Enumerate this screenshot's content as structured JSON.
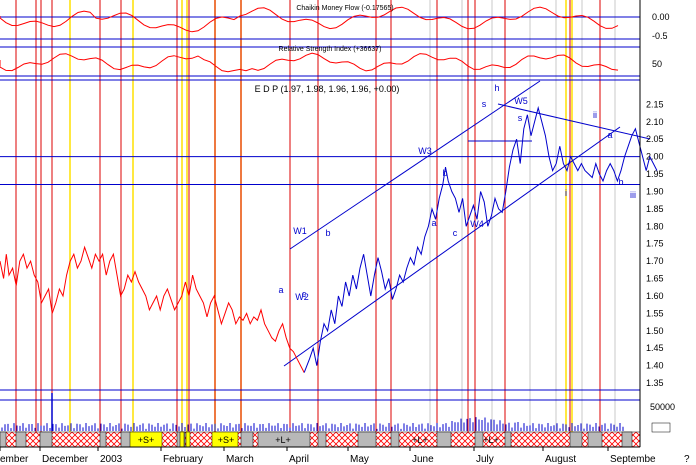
{
  "chart_data": {
    "type": "line",
    "title": "E D P (1.97, 1.98, 1.96, 1.96, +0.00)",
    "panels": {
      "cmf": {
        "title": "Chaikin Money Flow (-0.17565)",
        "ticks": [
          "0.00",
          "-0.5"
        ]
      },
      "rsi": {
        "title": "Relative Strength Index (+36637)",
        "ticks": [
          "50"
        ]
      },
      "price": {
        "ylim": [
          1.33,
          2.22
        ],
        "ticks": [
          "2.15",
          "2.10",
          "2.05",
          "2.00",
          "1.95",
          "1.90",
          "1.85",
          "1.80",
          "1.75",
          "1.70",
          "1.65",
          "1.60",
          "1.55",
          "1.50",
          "1.45",
          "1.40",
          "1.35"
        ]
      },
      "volume": {
        "ticks": [
          "50000"
        ]
      }
    },
    "x_labels": [
      "ember",
      "December",
      "2003",
      "February",
      "March",
      "April",
      "May",
      "June",
      "July",
      "August",
      "Septembe"
    ],
    "corner_label": "?",
    "series": [
      {
        "color": "#ff0000",
        "points": [
          [
            0,
            1.7
          ],
          [
            4,
            1.65
          ],
          [
            7,
            1.72
          ],
          [
            10,
            1.66
          ],
          [
            14,
            1.68
          ],
          [
            18,
            1.63
          ],
          [
            22,
            1.7
          ],
          [
            26,
            1.72
          ],
          [
            30,
            1.68
          ],
          [
            34,
            1.7
          ],
          [
            38,
            1.66
          ],
          [
            42,
            1.64
          ],
          [
            46,
            1.58
          ],
          [
            50,
            1.6
          ],
          [
            54,
            1.62
          ],
          [
            58,
            1.55
          ],
          [
            62,
            1.58
          ],
          [
            66,
            1.62
          ],
          [
            70,
            1.6
          ],
          [
            74,
            1.66
          ],
          [
            78,
            1.7
          ],
          [
            82,
            1.72
          ],
          [
            86,
            1.68
          ],
          [
            90,
            1.7
          ],
          [
            94,
            1.74
          ],
          [
            98,
            1.71
          ],
          [
            102,
            1.68
          ],
          [
            106,
            1.72
          ],
          [
            110,
            1.7
          ],
          [
            114,
            1.72
          ],
          [
            118,
            1.66
          ],
          [
            122,
            1.7
          ],
          [
            126,
            1.72
          ],
          [
            130,
            1.66
          ],
          [
            134,
            1.6
          ],
          [
            138,
            1.62
          ],
          [
            142,
            1.66
          ],
          [
            146,
            1.64
          ],
          [
            150,
            1.67
          ],
          [
            154,
            1.64
          ],
          [
            158,
            1.62
          ],
          [
            162,
            1.6
          ],
          [
            166,
            1.56
          ],
          [
            170,
            1.58
          ],
          [
            174,
            1.6
          ],
          [
            178,
            1.56
          ],
          [
            182,
            1.6
          ],
          [
            186,
            1.62
          ],
          [
            190,
            1.59
          ],
          [
            194,
            1.56
          ],
          [
            198,
            1.58
          ],
          [
            202,
            1.6
          ],
          [
            206,
            1.64
          ],
          [
            210,
            1.6
          ],
          [
            214,
            1.66
          ],
          [
            218,
            1.62
          ],
          [
            222,
            1.6
          ],
          [
            226,
            1.58
          ],
          [
            230,
            1.54
          ],
          [
            234,
            1.58
          ],
          [
            238,
            1.6
          ],
          [
            242,
            1.56
          ],
          [
            246,
            1.52
          ],
          [
            250,
            1.55
          ],
          [
            254,
            1.58
          ],
          [
            258,
            1.56
          ],
          [
            262,
            1.52
          ],
          [
            266,
            1.54
          ],
          [
            270,
            1.53
          ],
          [
            274,
            1.55
          ],
          [
            278,
            1.52
          ],
          [
            282,
            1.54
          ],
          [
            286,
            1.53
          ],
          [
            290,
            1.56
          ],
          [
            294,
            1.52
          ],
          [
            298,
            1.5
          ],
          [
            302,
            1.48
          ],
          [
            306,
            1.47
          ],
          [
            310,
            1.5
          ],
          [
            314,
            1.52
          ],
          [
            318,
            1.48
          ],
          [
            322,
            1.45
          ],
          [
            326,
            1.44
          ],
          [
            330,
            1.42
          ],
          [
            334,
            1.4
          ],
          [
            338,
            1.38
          ]
        ]
      },
      {
        "color": "#0000cc",
        "points": [
          [
            338,
            1.38
          ],
          [
            344,
            1.42
          ],
          [
            348,
            1.45
          ],
          [
            352,
            1.4
          ],
          [
            356,
            1.47
          ],
          [
            360,
            1.52
          ],
          [
            364,
            1.5
          ],
          [
            368,
            1.56
          ],
          [
            372,
            1.52
          ],
          [
            376,
            1.6
          ],
          [
            380,
            1.57
          ],
          [
            384,
            1.64
          ],
          [
            388,
            1.6
          ],
          [
            392,
            1.66
          ],
          [
            396,
            1.62
          ],
          [
            400,
            1.68
          ],
          [
            404,
            1.72
          ],
          [
            408,
            1.66
          ],
          [
            412,
            1.6
          ],
          [
            416,
            1.66
          ],
          [
            420,
            1.71
          ],
          [
            424,
            1.67
          ],
          [
            428,
            1.62
          ],
          [
            432,
            1.65
          ],
          [
            436,
            1.59
          ],
          [
            440,
            1.62
          ],
          [
            444,
            1.66
          ],
          [
            448,
            1.64
          ],
          [
            452,
            1.68
          ],
          [
            456,
            1.71
          ],
          [
            460,
            1.69
          ],
          [
            464,
            1.74
          ],
          [
            468,
            1.72
          ],
          [
            472,
            1.77
          ],
          [
            476,
            1.8
          ],
          [
            480,
            1.85
          ],
          [
            484,
            1.82
          ],
          [
            488,
            1.88
          ],
          [
            492,
            1.92
          ],
          [
            495,
            1.97
          ],
          [
            498,
            1.93
          ],
          [
            502,
            1.9
          ],
          [
            506,
            1.88
          ],
          [
            510,
            1.84
          ],
          [
            514,
            1.88
          ],
          [
            518,
            1.8
          ],
          [
            522,
            1.83
          ],
          [
            526,
            1.86
          ],
          [
            530,
            1.82
          ],
          [
            534,
            1.9
          ],
          [
            538,
            1.87
          ],
          [
            542,
            1.8
          ],
          [
            546,
            1.83
          ],
          [
            550,
            1.88
          ],
          [
            554,
            1.85
          ],
          [
            558,
            1.84
          ],
          [
            562,
            1.9
          ],
          [
            566,
            1.97
          ],
          [
            570,
            2.02
          ],
          [
            574,
            2.05
          ],
          [
            578,
            1.98
          ],
          [
            582,
            2.08
          ],
          [
            586,
            2.12
          ],
          [
            590,
            2.06
          ],
          [
            594,
            2.1
          ],
          [
            598,
            2.14
          ],
          [
            602,
            2.1
          ],
          [
            606,
            2.06
          ],
          [
            610,
            2.0
          ],
          [
            614,
            1.96
          ],
          [
            618,
            1.98
          ],
          [
            622,
            2.03
          ],
          [
            626,
            1.98
          ],
          [
            630,
            1.96
          ],
          [
            634,
            2.0
          ],
          [
            638,
            1.98
          ],
          [
            642,
            1.96
          ],
          [
            646,
            1.98
          ],
          [
            650,
            1.96
          ],
          [
            654,
            1.95
          ],
          [
            658,
            1.94
          ],
          [
            662,
            1.98
          ],
          [
            666,
            1.95
          ],
          [
            670,
            1.93
          ],
          [
            674,
            1.96
          ],
          [
            678,
            1.98
          ],
          [
            682,
            1.96
          ],
          [
            686,
            1.93
          ],
          [
            690,
            1.96
          ],
          [
            694,
            2.0
          ],
          [
            698,
            2.03
          ],
          [
            702,
            2.06
          ],
          [
            706,
            2.08
          ],
          [
            710,
            2.04
          ],
          [
            714,
            2.0
          ],
          [
            718,
            1.96
          ],
          [
            722,
            2.0
          ],
          [
            726,
            1.98
          ],
          [
            730,
            1.96
          ]
        ]
      }
    ],
    "annotations": [
      "W1",
      "b",
      "a",
      "c",
      "W2",
      "W3",
      "b",
      "a",
      "c",
      "W4",
      "h",
      "s",
      "W5",
      "s",
      "ii",
      "a",
      "i",
      "b",
      "iii"
    ],
    "band_labels": [
      "+S+",
      "+S+",
      "+L+",
      "+L+",
      "+L+"
    ]
  }
}
